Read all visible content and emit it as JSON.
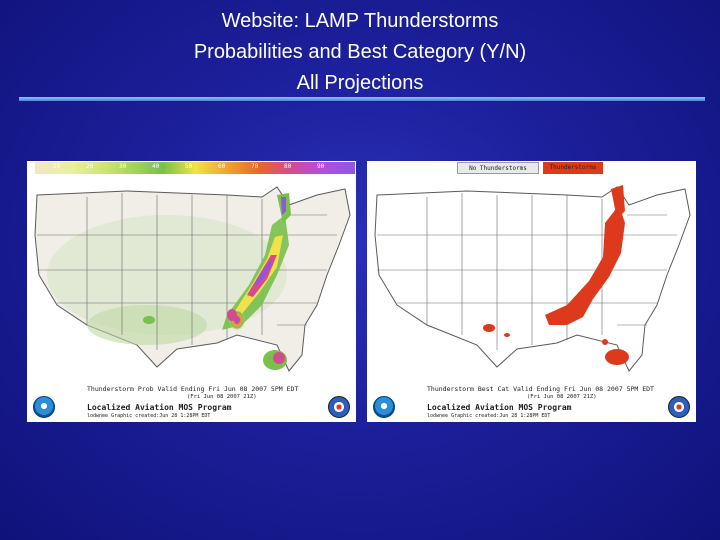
{
  "slide": {
    "title_line1": "Website:  LAMP Thunderstorms",
    "title_line2": "Probabilities and Best Category (Y/N)",
    "title_line3": "All Projections",
    "colors": {
      "background": "#1c1f9a",
      "title_text": "#ffffff",
      "rule": "#7fb4f7"
    }
  },
  "left_panel": {
    "colorbar_ticks": [
      "10",
      "20",
      "30",
      "40",
      "50",
      "60",
      "70",
      "80",
      "90"
    ],
    "caption": "Thunderstorm Prob Valid Ending Fri Jun 08 2007  5PM EDT",
    "sub_caption": "(Fri Jun 08 2007 21Z)",
    "program": "Localized Aviation MOS Program",
    "footer_small": "lodwnee  Graphic created:Jun 28  1:28PM EDT",
    "logos": [
      "noaa-logo",
      "nws-logo"
    ]
  },
  "right_panel": {
    "legend_no": "No Thunderstorms",
    "legend_yes": "Thunderstorms",
    "caption": "Thunderstorm Best Cat Valid Ending Fri Jun 08 2007  5PM EDT",
    "sub_caption": "(Fri Jun 08 2007 21Z)",
    "program": "Localized Aviation MOS Program",
    "footer_small": "lodwnee  Graphic created:Jun 28  1:28PM EDT",
    "logos": [
      "noaa-logo",
      "nws-logo"
    ],
    "colors": {
      "thunderstorms": "#dd3a1d",
      "no_thunderstorms": "#e9e9e9"
    }
  }
}
